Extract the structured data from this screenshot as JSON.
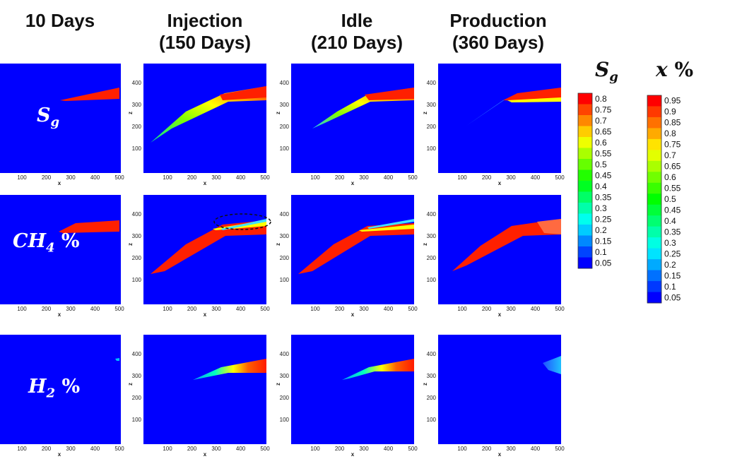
{
  "columns": [
    {
      "title": "10 Days"
    },
    {
      "title": "Injection\n(150 Days)"
    },
    {
      "title": "Idle\n(210 Days)"
    },
    {
      "title": "Production\n(360 Days)"
    }
  ],
  "rows": [
    {
      "label_base": "S",
      "label_sub": "g",
      "label_suffix": ""
    },
    {
      "label_base": "CH",
      "label_sub": "4",
      "label_suffix": " %"
    },
    {
      "label_base": "H",
      "label_sub": "2",
      "label_suffix": " %"
    }
  ],
  "axes": {
    "x_label": "x",
    "z_label": "z",
    "x_ticks": [
      "100",
      "200",
      "300",
      "400",
      "500"
    ],
    "z_ticks": [
      "100",
      "200",
      "300",
      "400"
    ]
  },
  "legends": {
    "sg": {
      "title_base": "S",
      "title_sub": "g",
      "labels": [
        "0.8",
        "0.75",
        "0.7",
        "0.65",
        "0.6",
        "0.55",
        "0.5",
        "0.45",
        "0.4",
        "0.35",
        "0.3",
        "0.25",
        "0.2",
        "0.15",
        "0.1",
        "0.05"
      ]
    },
    "x": {
      "title_base": "x",
      "title_suffix": " %",
      "labels": [
        "0.95",
        "0.9",
        "0.85",
        "0.8",
        "0.75",
        "0.7",
        "0.65",
        "0.6",
        "0.55",
        "0.5",
        "0.45",
        "0.4",
        "0.35",
        "0.3",
        "0.25",
        "0.2",
        "0.15",
        "0.1",
        "0.05"
      ]
    }
  },
  "colors": {
    "background_field": "#0000ff",
    "plume_high": "#ff2000",
    "plume_mid": "#ffff00",
    "plume_low": "#00ff80",
    "plume_faint": "#00c0ff"
  }
}
